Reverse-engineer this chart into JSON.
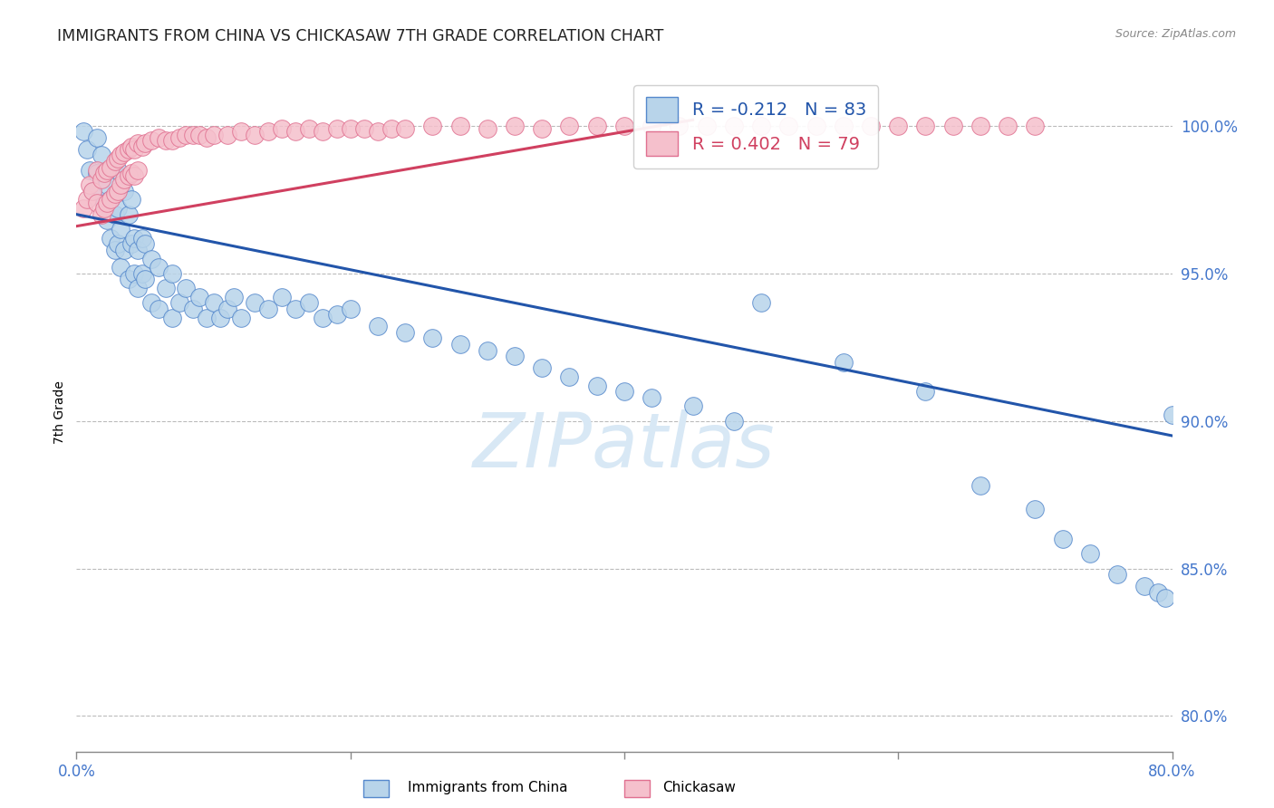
{
  "title": "IMMIGRANTS FROM CHINA VS CHICKASAW 7TH GRADE CORRELATION CHART",
  "source": "Source: ZipAtlas.com",
  "ylabel": "7th Grade",
  "ylabel_right_labels": [
    "100.0%",
    "95.0%",
    "90.0%",
    "85.0%",
    "80.0%"
  ],
  "ylabel_right_values": [
    1.0,
    0.95,
    0.9,
    0.85,
    0.8
  ],
  "xmin": 0.0,
  "xmax": 0.8,
  "ymin": 0.788,
  "ymax": 1.018,
  "legend_R_blue": "R = -0.212",
  "legend_N_blue": "N = 83",
  "legend_R_pink": "R = 0.402",
  "legend_N_pink": "N = 79",
  "legend_label_blue": "Immigrants from China",
  "legend_label_pink": "Chickasaw",
  "blue_color": "#b8d4ea",
  "blue_edge_color": "#5588cc",
  "blue_line_color": "#2255aa",
  "pink_color": "#f5c0cc",
  "pink_edge_color": "#e07090",
  "pink_line_color": "#d04060",
  "grid_color": "#bbbbbb",
  "title_color": "#222222",
  "axis_tick_color": "#4477cc",
  "watermark_color": "#d8e8f5",
  "blue_scatter_x": [
    0.005,
    0.008,
    0.01,
    0.012,
    0.015,
    0.015,
    0.018,
    0.02,
    0.022,
    0.022,
    0.025,
    0.025,
    0.028,
    0.028,
    0.03,
    0.03,
    0.03,
    0.032,
    0.032,
    0.035,
    0.035,
    0.038,
    0.038,
    0.04,
    0.04,
    0.042,
    0.042,
    0.045,
    0.045,
    0.048,
    0.048,
    0.05,
    0.05,
    0.055,
    0.055,
    0.06,
    0.06,
    0.065,
    0.07,
    0.07,
    0.075,
    0.08,
    0.085,
    0.09,
    0.095,
    0.1,
    0.105,
    0.11,
    0.115,
    0.12,
    0.13,
    0.14,
    0.15,
    0.16,
    0.17,
    0.18,
    0.19,
    0.2,
    0.22,
    0.24,
    0.26,
    0.28,
    0.3,
    0.32,
    0.34,
    0.36,
    0.38,
    0.4,
    0.42,
    0.45,
    0.48,
    0.5,
    0.56,
    0.62,
    0.66,
    0.7,
    0.72,
    0.74,
    0.76,
    0.78,
    0.79,
    0.795,
    0.8
  ],
  "blue_scatter_y": [
    0.998,
    0.992,
    0.985,
    0.978,
    0.996,
    0.984,
    0.99,
    0.974,
    0.98,
    0.968,
    0.975,
    0.962,
    0.97,
    0.958,
    0.985,
    0.972,
    0.96,
    0.965,
    0.952,
    0.978,
    0.958,
    0.97,
    0.948,
    0.975,
    0.96,
    0.962,
    0.95,
    0.958,
    0.945,
    0.962,
    0.95,
    0.96,
    0.948,
    0.955,
    0.94,
    0.952,
    0.938,
    0.945,
    0.95,
    0.935,
    0.94,
    0.945,
    0.938,
    0.942,
    0.935,
    0.94,
    0.935,
    0.938,
    0.942,
    0.935,
    0.94,
    0.938,
    0.942,
    0.938,
    0.94,
    0.935,
    0.936,
    0.938,
    0.932,
    0.93,
    0.928,
    0.926,
    0.924,
    0.922,
    0.918,
    0.915,
    0.912,
    0.91,
    0.908,
    0.905,
    0.9,
    0.94,
    0.92,
    0.91,
    0.878,
    0.87,
    0.86,
    0.855,
    0.848,
    0.844,
    0.842,
    0.84,
    0.902
  ],
  "pink_scatter_x": [
    0.005,
    0.008,
    0.01,
    0.012,
    0.015,
    0.015,
    0.018,
    0.018,
    0.02,
    0.02,
    0.022,
    0.022,
    0.025,
    0.025,
    0.028,
    0.028,
    0.03,
    0.03,
    0.032,
    0.032,
    0.035,
    0.035,
    0.038,
    0.038,
    0.04,
    0.04,
    0.042,
    0.042,
    0.045,
    0.045,
    0.048,
    0.05,
    0.055,
    0.06,
    0.065,
    0.07,
    0.075,
    0.08,
    0.085,
    0.09,
    0.095,
    0.1,
    0.11,
    0.12,
    0.13,
    0.14,
    0.15,
    0.16,
    0.17,
    0.18,
    0.19,
    0.2,
    0.21,
    0.22,
    0.23,
    0.24,
    0.26,
    0.28,
    0.3,
    0.32,
    0.34,
    0.36,
    0.38,
    0.4,
    0.42,
    0.44,
    0.46,
    0.48,
    0.5,
    0.52,
    0.54,
    0.56,
    0.58,
    0.6,
    0.62,
    0.64,
    0.66,
    0.68,
    0.7
  ],
  "pink_scatter_y": [
    0.972,
    0.975,
    0.98,
    0.978,
    0.985,
    0.974,
    0.982,
    0.97,
    0.984,
    0.972,
    0.985,
    0.974,
    0.986,
    0.975,
    0.988,
    0.977,
    0.989,
    0.978,
    0.99,
    0.98,
    0.991,
    0.982,
    0.992,
    0.983,
    0.993,
    0.984,
    0.992,
    0.983,
    0.994,
    0.985,
    0.993,
    0.994,
    0.995,
    0.996,
    0.995,
    0.995,
    0.996,
    0.997,
    0.997,
    0.997,
    0.996,
    0.997,
    0.997,
    0.998,
    0.997,
    0.998,
    0.999,
    0.998,
    0.999,
    0.998,
    0.999,
    0.999,
    0.999,
    0.998,
    0.999,
    0.999,
    1.0,
    1.0,
    0.999,
    1.0,
    0.999,
    1.0,
    1.0,
    1.0,
    1.0,
    1.0,
    1.0,
    1.0,
    1.0,
    1.0,
    1.0,
    1.0,
    1.0,
    1.0,
    1.0,
    1.0,
    1.0,
    1.0,
    1.0
  ],
  "blue_trend_x": [
    0.0,
    0.8
  ],
  "blue_trend_y": [
    0.97,
    0.895
  ],
  "pink_trend_x": [
    0.0,
    0.45
  ],
  "pink_trend_y": [
    0.966,
    1.002
  ]
}
